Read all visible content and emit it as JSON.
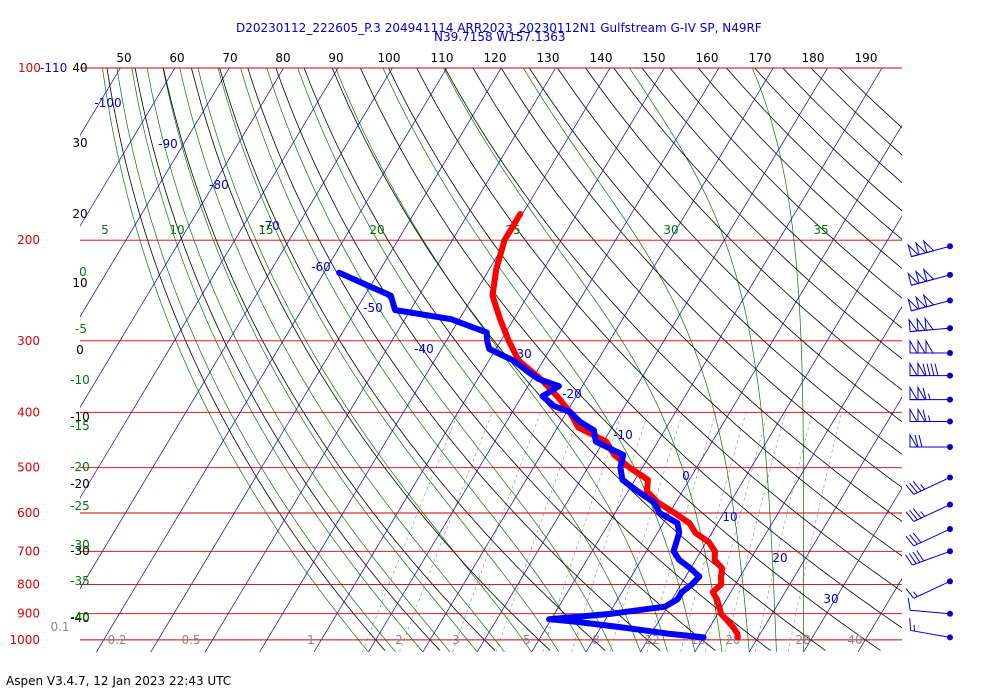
{
  "header": {
    "line1": "D20230112_222605_P.3 204941114 ARR2023_20230112N1 Gulfstream G-IV SP, N49RF",
    "line2": "N39.7158 W157.1363"
  },
  "footer": {
    "text": "Aspen V3.4.7, 12 Jan 2023  22:43 UTC"
  },
  "colors": {
    "temperature": "#ff0000",
    "dewpoint": "#0000ff",
    "isobar": "#cc0000",
    "isotherm": "#0000aa",
    "dry_adiabat": "#000000",
    "moist_adiabat": "#007700",
    "mixing_ratio": "#888888",
    "wind_barb": "#0000cc"
  },
  "chart_data": {
    "type": "skew-t",
    "top_labels": [
      "50",
      "60",
      "70",
      "80",
      "90",
      "100",
      "110",
      "120",
      "130",
      "140",
      "150",
      "160",
      "170",
      "180",
      "190"
    ],
    "pressure_labels": [
      {
        "label": "100-110",
        "p": 100
      },
      {
        "label": "200",
        "p": 200
      },
      {
        "label": "300",
        "p": 300
      },
      {
        "label": "400",
        "p": 400
      },
      {
        "label": "500",
        "p": 500
      },
      {
        "label": "600",
        "p": 600
      },
      {
        "label": "700",
        "p": 700
      },
      {
        "label": "800",
        "p": 800
      },
      {
        "label": "900",
        "p": 900
      },
      {
        "label": "1000",
        "p": 1000
      }
    ],
    "isotherm_labels": [
      "-100",
      "-90",
      "-80",
      "-70",
      "-60",
      "-50",
      "-40",
      "-30",
      "-20",
      "-10",
      "0",
      "10",
      "20",
      "30"
    ],
    "dry_adiabat_labels": [
      "40",
      "30",
      "20",
      "10",
      "0",
      "-10",
      "-20",
      "-30",
      "-40"
    ],
    "moist_labels": [
      "0",
      "-5",
      "-10",
      "-15",
      "-20",
      "-25",
      "-30",
      "-35",
      "-40"
    ],
    "moist_top_labels": [
      "5",
      "10",
      "15",
      "20",
      "25",
      "30",
      "35"
    ],
    "mixing_labels": [
      "0.1",
      "0.2",
      "0.5",
      "1",
      "2",
      "3",
      "5",
      "8",
      "12",
      "16",
      "20",
      "28",
      "40"
    ],
    "temperature": [
      [
        -60.4,
        180
      ],
      [
        -60.4,
        200
      ],
      [
        -58.7,
        225
      ],
      [
        -56.5,
        250
      ],
      [
        -52.5,
        275
      ],
      [
        -48.5,
        300
      ],
      [
        -44.5,
        325
      ],
      [
        -38.4,
        350
      ],
      [
        -33.5,
        375
      ],
      [
        -29.4,
        400
      ],
      [
        -26.2,
        425
      ],
      [
        -19.5,
        450
      ],
      [
        -16.5,
        475
      ],
      [
        -12.3,
        500
      ],
      [
        -7.6,
        525
      ],
      [
        -6.5,
        550
      ],
      [
        -3.3,
        575
      ],
      [
        1.0,
        600
      ],
      [
        4.8,
        625
      ],
      [
        7.0,
        650
      ],
      [
        10.5,
        675
      ],
      [
        12.6,
        700
      ],
      [
        13.5,
        725
      ],
      [
        15.8,
        750
      ],
      [
        16.5,
        775
      ],
      [
        17.4,
        800
      ],
      [
        16.7,
        825
      ],
      [
        18.3,
        850
      ],
      [
        19.5,
        875
      ],
      [
        20.6,
        900
      ],
      [
        22.5,
        925
      ],
      [
        24.3,
        950
      ],
      [
        25.8,
        975
      ],
      [
        26.3,
        990
      ]
    ],
    "dewpoint": [
      [
        -87.2,
        228
      ],
      [
        -80.6,
        240
      ],
      [
        -75.2,
        250
      ],
      [
        -72.8,
        265
      ],
      [
        -61.5,
        275
      ],
      [
        -53.5,
        290
      ],
      [
        -52.5,
        300
      ],
      [
        -51.2,
        310
      ],
      [
        -45.4,
        325
      ],
      [
        -41.5,
        340
      ],
      [
        -38.8,
        350
      ],
      [
        -34.3,
        360
      ],
      [
        -36.2,
        375
      ],
      [
        -33.0,
        390
      ],
      [
        -29.3,
        400
      ],
      [
        -26.6,
        415
      ],
      [
        -23.0,
        430
      ],
      [
        -21.4,
        450
      ],
      [
        -14.9,
        475
      ],
      [
        -14.0,
        500
      ],
      [
        -12.3,
        525
      ],
      [
        -8.2,
        550
      ],
      [
        -4.0,
        575
      ],
      [
        -1.8,
        600
      ],
      [
        2.6,
        625
      ],
      [
        4.0,
        650
      ],
      [
        5.0,
        700
      ],
      [
        7.0,
        725
      ],
      [
        10.0,
        750
      ],
      [
        12.5,
        775
      ],
      [
        12.0,
        800
      ],
      [
        11.0,
        825
      ],
      [
        11.0,
        850
      ],
      [
        9.5,
        875
      ],
      [
        0.5,
        900
      ],
      [
        -10.4,
        920
      ],
      [
        -5.0,
        930
      ],
      [
        3.5,
        950
      ],
      [
        13.0,
        975
      ],
      [
        20.0,
        990
      ]
    ],
    "wind_barbs": [
      {
        "p": 205,
        "speed": 150,
        "dir": 255
      },
      {
        "p": 230,
        "speed": 150,
        "dir": 255
      },
      {
        "p": 255,
        "speed": 150,
        "dir": 255
      },
      {
        "p": 285,
        "speed": 150,
        "dir": 265
      },
      {
        "p": 315,
        "speed": 150,
        "dir": 270
      },
      {
        "p": 345,
        "speed": 140,
        "dir": 270
      },
      {
        "p": 380,
        "speed": 115,
        "dir": 270
      },
      {
        "p": 415,
        "speed": 115,
        "dir": 270
      },
      {
        "p": 460,
        "speed": 70,
        "dir": 270
      },
      {
        "p": 520,
        "speed": 35,
        "dir": 245
      },
      {
        "p": 580,
        "speed": 35,
        "dir": 245
      },
      {
        "p": 640,
        "speed": 30,
        "dir": 245
      },
      {
        "p": 700,
        "speed": 40,
        "dir": 250
      },
      {
        "p": 790,
        "speed": 15,
        "dir": 245
      },
      {
        "p": 900,
        "speed": 10,
        "dir": 275
      },
      {
        "p": 990,
        "speed": 15,
        "dir": 280
      }
    ]
  }
}
